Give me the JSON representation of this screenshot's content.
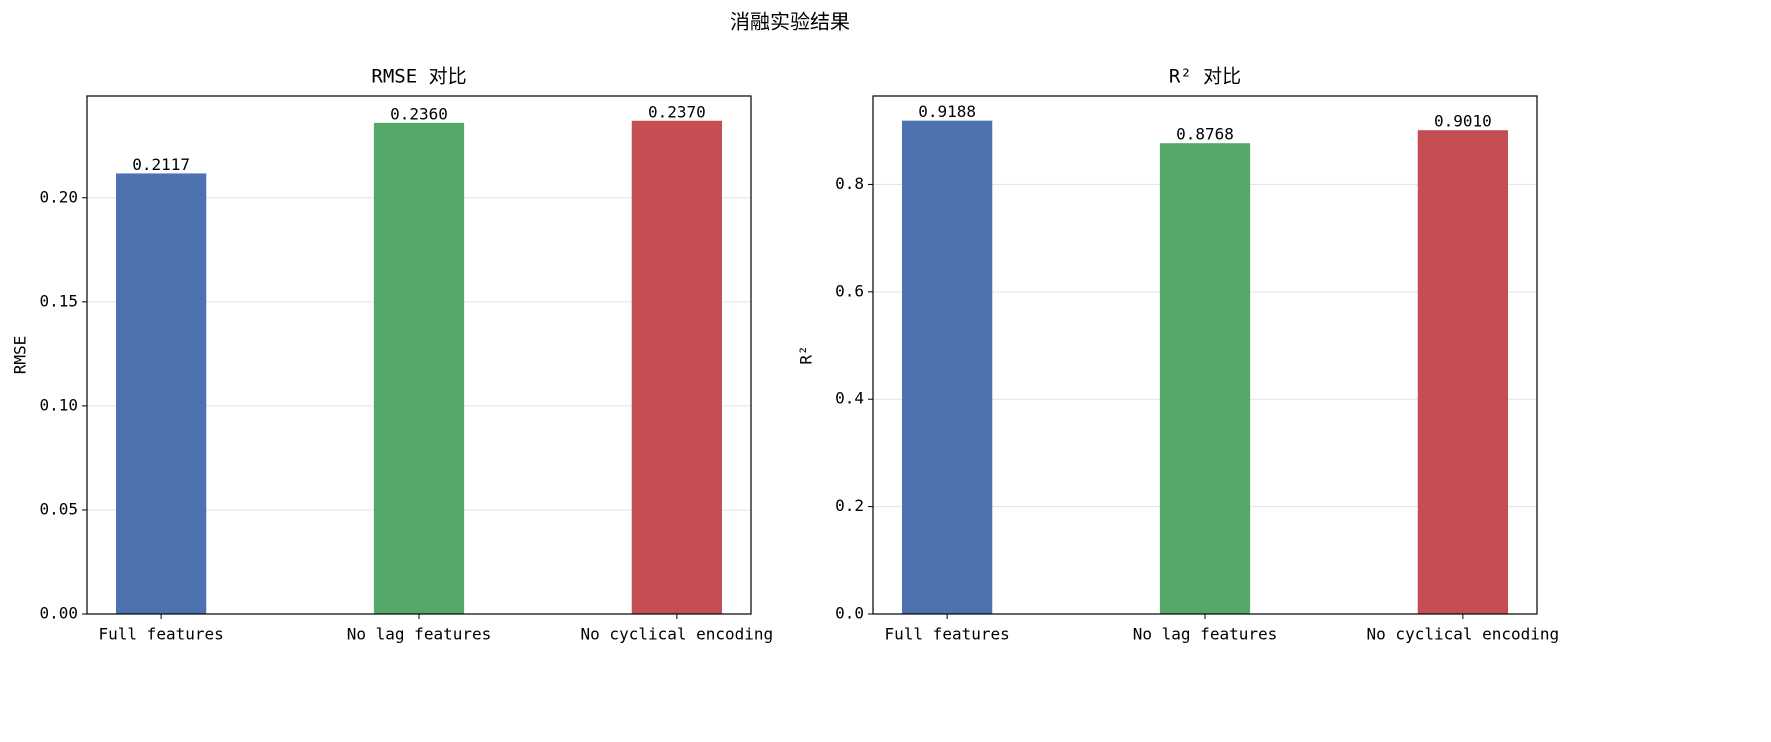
{
  "title": "消融实验结果",
  "chart_data": [
    {
      "type": "bar",
      "title": "RMSE 对比",
      "y_label": "RMSE",
      "categories": [
        "Full features",
        "No lag features",
        "No cyclical encoding"
      ],
      "values": [
        0.2117,
        0.236,
        0.237
      ],
      "value_labels": [
        "0.2117",
        "0.2360",
        "0.2370"
      ],
      "colors": [
        "#4c72b0",
        "#55a868",
        "#c44e52"
      ],
      "ylim": [
        0,
        0.2489
      ],
      "yticks": [
        {
          "value": 0,
          "label": "0.00"
        },
        {
          "value": 0.05,
          "label": "0.05"
        },
        {
          "value": 0.1,
          "label": "0.10"
        },
        {
          "value": 0.15,
          "label": "0.15"
        },
        {
          "value": 0.2,
          "label": "0.20"
        }
      ],
      "grid": true
    },
    {
      "type": "bar",
      "title": "R² 对比",
      "y_label": "R²",
      "categories": [
        "Full features",
        "No lag features",
        "No cyclical encoding"
      ],
      "values": [
        0.9188,
        0.8768,
        0.901
      ],
      "value_labels": [
        "0.9188",
        "0.8768",
        "0.9010"
      ],
      "colors": [
        "#4c72b0",
        "#55a868",
        "#c44e52"
      ],
      "ylim": [
        0,
        0.9647
      ],
      "yticks": [
        {
          "value": 0,
          "label": "0.0"
        },
        {
          "value": 0.2,
          "label": "0.2"
        },
        {
          "value": 0.4,
          "label": "0.4"
        },
        {
          "value": 0.6,
          "label": "0.6"
        },
        {
          "value": 0.8,
          "label": "0.8"
        }
      ],
      "grid": true
    }
  ]
}
